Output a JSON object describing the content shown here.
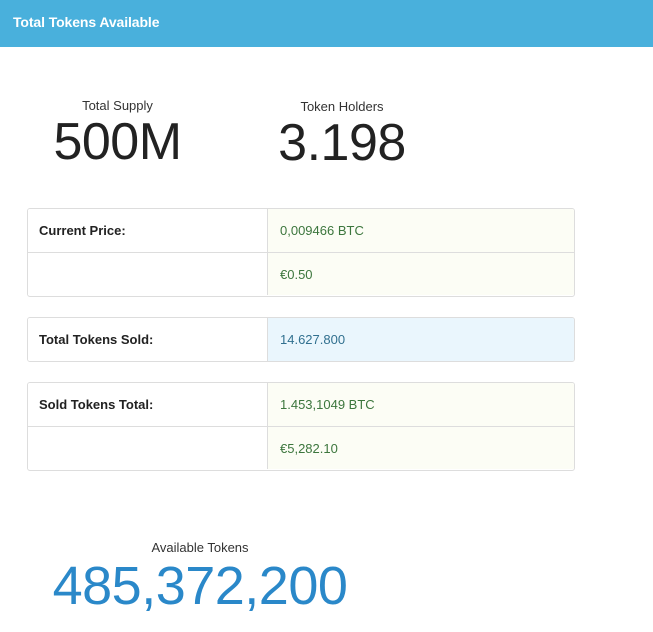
{
  "header": {
    "title": "Total Tokens Available"
  },
  "stats": {
    "total_supply": {
      "label": "Total Supply",
      "value": "500M"
    },
    "token_holders": {
      "label": "Token Holders",
      "value": "3.198"
    }
  },
  "current_price": {
    "label": "Current Price:",
    "btc": "0,009466 BTC",
    "eur": "€0.50"
  },
  "tokens_sold": {
    "label": "Total Tokens Sold:",
    "value": "14.627.800"
  },
  "sold_tokens_total": {
    "label": "Sold Tokens Total:",
    "btc": "1.453,1049 BTC",
    "eur": "€5,282.10"
  },
  "available": {
    "label": "Available Tokens",
    "value": "485,372,200"
  },
  "colors": {
    "header_bg": "#49b0dc",
    "success_text": "#3c763d",
    "info_bg": "#eaf6fd",
    "available_value": "#2a88c9"
  }
}
